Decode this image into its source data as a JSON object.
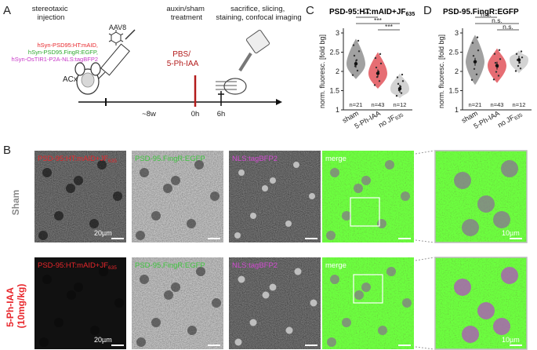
{
  "panel_letters": [
    "A",
    "B",
    "C",
    "D"
  ],
  "panel_a": {
    "step1": "stereotaxic\ninjection",
    "virus": "AAV8",
    "construct1": "hSyn-PSD95:HT:mAID,",
    "construct2": "hSyn-PSD95.FingR:EGFP,",
    "construct3": "hSyn-OsTIR1-P2A-NLS:tagBFP2",
    "region": "ACx",
    "step2": "auxin/sham\ntreatment",
    "step3": "sacrifice, slicing,\nstaining, confocal imaging",
    "treatment": "PBS/\n5-Ph-IAA",
    "tick_labels": [
      "~8w",
      "0h",
      "6h"
    ],
    "colors": {
      "construct1": "#e8262b",
      "construct2": "#2ea82e",
      "construct3": "#c837c8",
      "treatment": "#b31b1b"
    }
  },
  "panel_b": {
    "row_labels": [
      "Sham",
      "5-Ph-IAA\n(10mg/kg)"
    ],
    "channels": [
      {
        "label": "PSD-95:HT:mAID+JF",
        "sub": "635",
        "color": "#e8262b"
      },
      {
        "label": "PSD-95.FingR:EGFP",
        "sub": "",
        "color": "#3ec43e"
      },
      {
        "label": "NLS:tagBFP2",
        "sub": "",
        "color": "#d24bd2"
      },
      {
        "label": "merge",
        "sub": "",
        "color": "#ffffff"
      }
    ],
    "scalebars": [
      "20µm",
      "20µm",
      "10µm",
      "10µm"
    ]
  },
  "chart_data": [
    {
      "type": "violin",
      "title": "PSD-95:HT:mAID+JF",
      "title_sub": "635",
      "title_color": "#e8262b",
      "ylabel": "norm. fluoresc. [fold bg]",
      "ylim": [
        1,
        3
      ],
      "yticks": [
        "1",
        "1.5",
        "2",
        "2.5",
        "3"
      ],
      "categories": [
        "sham",
        "5-Ph-IAA",
        "no JF"
      ],
      "category_subs": [
        "",
        "",
        "635"
      ],
      "n_labels": [
        "n=21",
        "n=43",
        "n=12"
      ],
      "n_subs": [
        "",
        "",
        ""
      ],
      "means": [
        2.2,
        1.95,
        1.55
      ],
      "mins": [
        1.8,
        1.55,
        1.3
      ],
      "maxs": [
        2.85,
        2.5,
        1.95
      ],
      "colors": [
        "#8a8a8a",
        "#e04850",
        "#c8c8c8"
      ],
      "significance": [
        {
          "pair": [
            0,
            1
          ],
          "label": "**"
        },
        {
          "pair": [
            0,
            2
          ],
          "label": "***"
        },
        {
          "pair": [
            1,
            2
          ],
          "label": "***"
        }
      ]
    },
    {
      "type": "violin",
      "title": "PSD-95.FingR:EGFP",
      "title_sub": "",
      "title_color": "#3ec43e",
      "ylabel": "norm. fluoresc. [fold bg]",
      "ylim": [
        1,
        3
      ],
      "yticks": [
        "1",
        "1.5",
        "2",
        "2.5",
        "3"
      ],
      "categories": [
        "sham",
        "5-Ph-IAA",
        "no JF"
      ],
      "category_subs": [
        "",
        "",
        "635"
      ],
      "n_labels": [
        "n=21",
        "n=43",
        "n=12"
      ],
      "means": [
        2.25,
        2.15,
        2.3
      ],
      "mins": [
        1.65,
        1.7,
        1.95
      ],
      "maxs": [
        2.95,
        2.6,
        2.55
      ],
      "colors": [
        "#8a8a8a",
        "#e04850",
        "#c8c8c8"
      ],
      "significance": [
        {
          "pair": [
            0,
            1
          ],
          "label": "n.s."
        },
        {
          "pair": [
            0,
            2
          ],
          "label": "n.s."
        },
        {
          "pair": [
            1,
            2
          ],
          "label": "n.s."
        }
      ]
    }
  ]
}
